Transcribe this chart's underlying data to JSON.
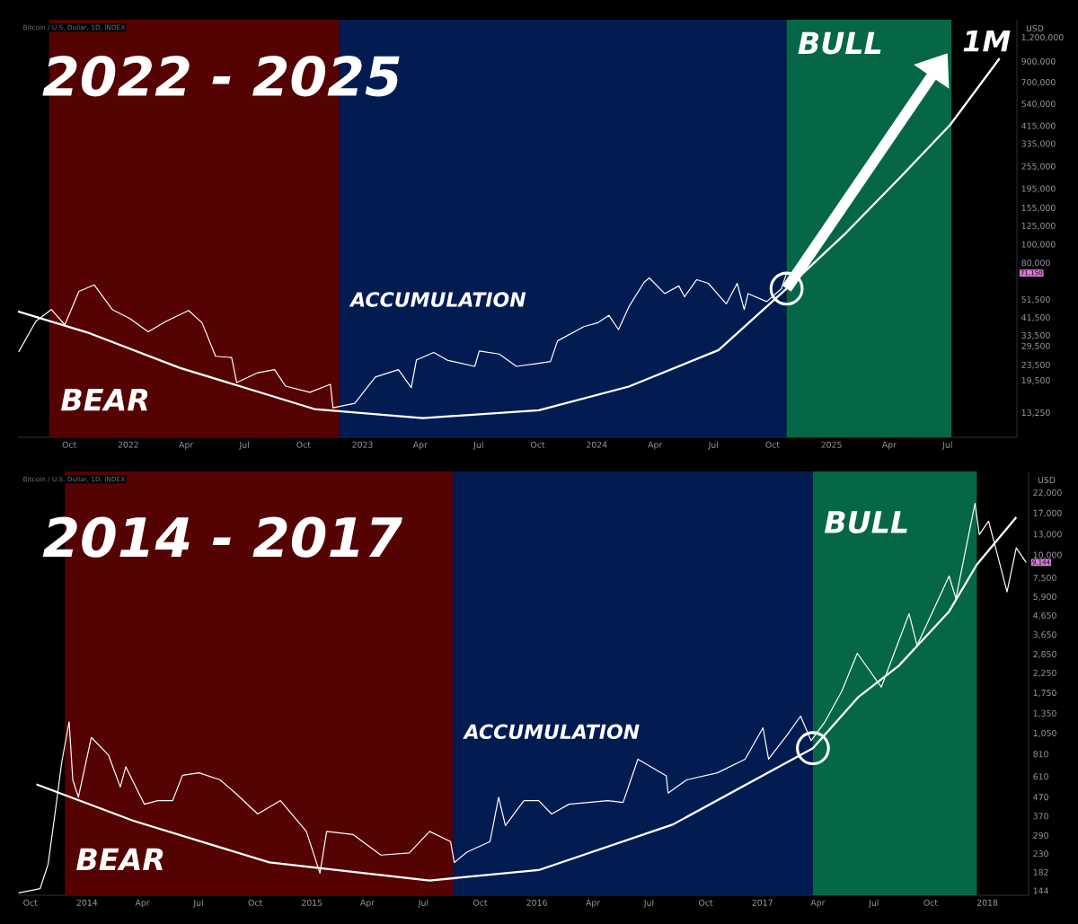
{
  "chart_data": [
    {
      "type": "line",
      "title": "2022 - 2025",
      "subtitle": "Bitcoin / U.S. Dollar, 1D, INDEX",
      "ylabel": "USD",
      "log": true,
      "xlim": [
        "2021-07-13",
        "2025-10-17"
      ],
      "ylim": [
        9900,
        1490000
      ],
      "xticks": [
        {
          "value": "2021-10-01",
          "label": "Oct"
        },
        {
          "value": "2022-01-01",
          "label": "2022"
        },
        {
          "value": "2022-04-01",
          "label": "Apr"
        },
        {
          "value": "2022-07-01",
          "label": "Jul"
        },
        {
          "value": "2022-10-01",
          "label": "Oct"
        },
        {
          "value": "2023-01-01",
          "label": "2023"
        },
        {
          "value": "2023-04-01",
          "label": "Apr"
        },
        {
          "value": "2023-07-01",
          "label": "Jul"
        },
        {
          "value": "2023-10-01",
          "label": "Oct"
        },
        {
          "value": "2024-01-01",
          "label": "2024"
        },
        {
          "value": "2024-04-01",
          "label": "Apr"
        },
        {
          "value": "2024-07-01",
          "label": "Jul"
        },
        {
          "value": "2024-10-01",
          "label": "Oct"
        },
        {
          "value": "2025-01-01",
          "label": "2025"
        },
        {
          "value": "2025-04-01",
          "label": "Apr"
        },
        {
          "value": "2025-07-01",
          "label": "Jul"
        }
      ],
      "yticks": [
        {
          "value": 13250,
          "label": "13,250"
        },
        {
          "value": 19500,
          "label": "19,500"
        },
        {
          "value": 23500,
          "label": "23,500"
        },
        {
          "value": 29500,
          "label": "29,500"
        },
        {
          "value": 33500,
          "label": "33,500"
        },
        {
          "value": 41500,
          "label": "41,500"
        },
        {
          "value": 51500,
          "label": "51,500"
        },
        {
          "value": 80000,
          "label": "80,000"
        },
        {
          "value": 100000,
          "label": "100,000"
        },
        {
          "value": 125000,
          "label": "125,000"
        },
        {
          "value": 155000,
          "label": "155,000"
        },
        {
          "value": 195000,
          "label": "195,000"
        },
        {
          "value": 255000,
          "label": "255,000"
        },
        {
          "value": 335000,
          "label": "335,000"
        },
        {
          "value": 415000,
          "label": "415,000"
        },
        {
          "value": 540000,
          "label": "540,000"
        },
        {
          "value": 700000,
          "label": "700,000"
        },
        {
          "value": 900000,
          "label": "900,000"
        },
        {
          "value": 1200000,
          "label": "1,200,000"
        }
      ],
      "bands": [
        {
          "axis": "x",
          "from": "2021-08-31",
          "to": "2022-11-26",
          "label": "BEAR",
          "color": "#550202"
        },
        {
          "axis": "x",
          "from": "2022-11-26",
          "to": "2024-10-23",
          "label": "ACCUMULATION",
          "color": "#021c52"
        },
        {
          "axis": "x",
          "from": "2024-10-23",
          "to": "2025-07-07",
          "label": "BULL",
          "color": "#056748"
        }
      ],
      "series": [
        {
          "type": "line",
          "color": "#ffffff",
          "x": [
            "2021-07-14",
            "2021-08-10",
            "2021-09-03",
            "2021-09-24",
            "2021-10-16",
            "2021-11-09",
            "2021-12-07",
            "2022-01-04",
            "2022-02-01",
            "2022-03-01",
            "2022-04-05",
            "2022-04-26",
            "2022-05-17",
            "2022-06-11",
            "2022-06-19",
            "2022-07-22",
            "2022-08-17",
            "2022-09-03",
            "2022-10-11",
            "2022-11-12",
            "2022-11-16",
            "2022-12-20",
            "2023-01-21",
            "2023-02-26",
            "2023-03-18",
            "2023-03-26",
            "2023-04-22",
            "2023-05-13",
            "2023-06-25",
            "2023-07-02",
            "2023-08-02",
            "2023-08-29",
            "2023-09-30",
            "2023-10-21",
            "2023-11-01",
            "2023-12-12",
            "2024-01-03",
            "2024-01-20",
            "2024-02-04",
            "2024-02-21",
            "2024-03-15",
            "2024-03-23",
            "2024-04-16",
            "2024-05-08",
            "2024-05-17",
            "2024-06-05",
            "2024-06-23",
            "2024-07-21",
            "2024-08-07",
            "2024-08-18",
            "2024-08-24",
            "2024-09-22",
            "2024-10-15",
            "2024-10-23"
          ],
          "values": [
            27600,
            39900,
            45900,
            38200,
            57100,
            61700,
            45900,
            41100,
            35100,
            39900,
            45400,
            39100,
            26200,
            25800,
            19100,
            21500,
            22300,
            18300,
            17000,
            18700,
            14100,
            14900,
            20400,
            22300,
            18000,
            25000,
            27400,
            25000,
            23200,
            27900,
            26900,
            23200,
            24000,
            24600,
            31500,
            37400,
            39200,
            42800,
            36100,
            48000,
            63800,
            67100,
            55600,
            61000,
            53500,
            65700,
            62900,
            49100,
            62900,
            45900,
            55600,
            50500,
            59000,
            71150
          ]
        },
        {
          "type": "line",
          "color": "#ffffff",
          "x": [
            "2021-07-13",
            "2021-11-02",
            "2022-03-22",
            "2022-10-18",
            "2023-04-05",
            "2023-10-03",
            "2024-02-20",
            "2024-07-09",
            "2024-10-23",
            "2025-01-21",
            "2025-04-15",
            "2025-07-05",
            "2025-09-20"
          ],
          "values": [
            44900,
            34500,
            22800,
            13900,
            12470,
            13700,
            18200,
            28200,
            59000,
            113000,
            219000,
            422000,
            937000
          ]
        }
      ],
      "annotations": [
        {
          "text": "1M",
          "x": "2025-07-01",
          "y": 1000000
        },
        "71,150"
      ]
    },
    {
      "type": "line",
      "title": "2014 - 2017",
      "subtitle": "Bitcoin / U.S. Dollar, 1D, INDEX",
      "ylabel": "USD",
      "log": true,
      "xlim": [
        "2013-09-11",
        "2018-03-09"
      ],
      "ylim": [
        136,
        28900
      ],
      "xticks": [
        {
          "value": "2013-10-01",
          "label": "Oct"
        },
        {
          "value": "2014-01-01",
          "label": "2014"
        },
        {
          "value": "2014-04-01",
          "label": "Apr"
        },
        {
          "value": "2014-07-01",
          "label": "Jul"
        },
        {
          "value": "2014-10-01",
          "label": "Oct"
        },
        {
          "value": "2015-01-01",
          "label": "2015"
        },
        {
          "value": "2015-04-01",
          "label": "Apr"
        },
        {
          "value": "2015-07-01",
          "label": "Jul"
        },
        {
          "value": "2015-10-01",
          "label": "Oct"
        },
        {
          "value": "2016-01-01",
          "label": "2016"
        },
        {
          "value": "2016-04-01",
          "label": "Apr"
        },
        {
          "value": "2016-07-01",
          "label": "Jul"
        },
        {
          "value": "2016-10-01",
          "label": "Oct"
        },
        {
          "value": "2017-01-01",
          "label": "2017"
        },
        {
          "value": "2017-04-01",
          "label": "Apr"
        },
        {
          "value": "2017-07-01",
          "label": "Jul"
        },
        {
          "value": "2017-10-01",
          "label": "Oct"
        },
        {
          "value": "2018-01-01",
          "label": "2018"
        }
      ],
      "yticks": [
        144,
        182,
        230,
        290,
        370,
        470,
        610,
        810,
        {
          "value": 1050,
          "label": "1,050"
        },
        {
          "value": 1350,
          "label": "1,350"
        },
        {
          "value": 1750,
          "label": "1,750"
        },
        {
          "value": 2250,
          "label": "2,250"
        },
        {
          "value": 2850,
          "label": "2,850"
        },
        {
          "value": 3650,
          "label": "3,650"
        },
        {
          "value": 4650,
          "label": "4,650"
        },
        {
          "value": 5900,
          "label": "5,900"
        },
        {
          "value": 7500,
          "label": "7,500"
        },
        {
          "value": 10000,
          "label": "10,000"
        },
        {
          "value": 13000,
          "label": "13,000"
        },
        {
          "value": 17000,
          "label": "17,000"
        },
        {
          "value": 22000,
          "label": "22,000"
        }
      ],
      "bands": [
        {
          "axis": "x",
          "from": "2013-11-26",
          "to": "2015-08-18",
          "label": "BEAR",
          "color": "#550202"
        },
        {
          "axis": "x",
          "from": "2015-08-18",
          "to": "2017-03-24",
          "label": "ACCUMULATION",
          "color": "#021c52"
        },
        {
          "axis": "x",
          "from": "2017-03-24",
          "to": "2017-12-15",
          "label": "BULL",
          "color": "#056748"
        }
      ],
      "series": [
        {
          "type": "line",
          "color": "#ffffff",
          "x": [
            "2013-09-12",
            "2013-10-17",
            "2013-10-30",
            "2013-11-10",
            "2013-11-21",
            "2013-12-03",
            "2013-12-09",
            "2013-12-18",
            "2014-01-08",
            "2014-02-05",
            "2014-02-24",
            "2014-03-05",
            "2014-04-04",
            "2014-04-26",
            "2014-05-20",
            "2014-06-05",
            "2014-07-02",
            "2014-08-05",
            "2014-08-30",
            "2014-10-05",
            "2014-11-11",
            "2014-12-23",
            "2015-01-14",
            "2015-01-25",
            "2015-03-09",
            "2015-04-23",
            "2015-06-08",
            "2015-07-11",
            "2015-08-14",
            "2015-08-20",
            "2015-09-10",
            "2015-10-17",
            "2015-10-31",
            "2015-11-11",
            "2015-12-11",
            "2016-01-04",
            "2016-01-25",
            "2016-02-22",
            "2016-04-25",
            "2016-05-20",
            "2016-06-13",
            "2016-07-29",
            "2016-08-01",
            "2016-08-31",
            "2016-10-20",
            "2016-12-04",
            "2017-01-02",
            "2017-01-11",
            "2017-02-10",
            "2017-03-04",
            "2017-03-21",
            "2017-04-12",
            "2017-05-10",
            "2017-06-04",
            "2017-07-13",
            "2017-08-27",
            "2017-09-09",
            "2017-10-31",
            "2017-11-11",
            "2017-12-12",
            "2017-12-19",
            "2018-01-03",
            "2018-01-17",
            "2018-02-02",
            "2018-02-17",
            "2018-03-05"
          ],
          "values": [
            140,
            148,
            202,
            380,
            730,
            1220,
            585,
            470,
            1000,
            800,
            535,
            690,
            430,
            450,
            450,
            620,
            640,
            585,
            495,
            380,
            450,
            305,
            180,
            305,
            293,
            226,
            232,
            305,
            268,
            206,
            235,
            268,
            470,
            328,
            450,
            450,
            380,
            430,
            450,
            440,
            760,
            615,
            495,
            585,
            640,
            760,
            1130,
            760,
            1030,
            1310,
            960,
            1210,
            1800,
            2900,
            1890,
            4780,
            3200,
            7700,
            5800,
            19300,
            13000,
            15400,
            10200,
            6300,
            11000,
            9144
          ]
        },
        {
          "type": "line",
          "color": "#ffffff",
          "x": [
            "2013-10-11",
            "2014-03-17",
            "2014-10-24",
            "2015-07-11",
            "2016-01-04",
            "2016-08-09",
            "2017-03-24",
            "2017-06-05",
            "2017-08-10",
            "2017-10-31",
            "2017-12-15",
            "2018-02-17"
          ],
          "values": [
            553,
            349,
            206,
            164,
            187,
            333,
            873,
            1660,
            2470,
            4920,
            8900,
            16200
          ]
        }
      ],
      "annotations": [
        {
          "text": "9,144",
          "y": 9144
        }
      ]
    }
  ]
}
